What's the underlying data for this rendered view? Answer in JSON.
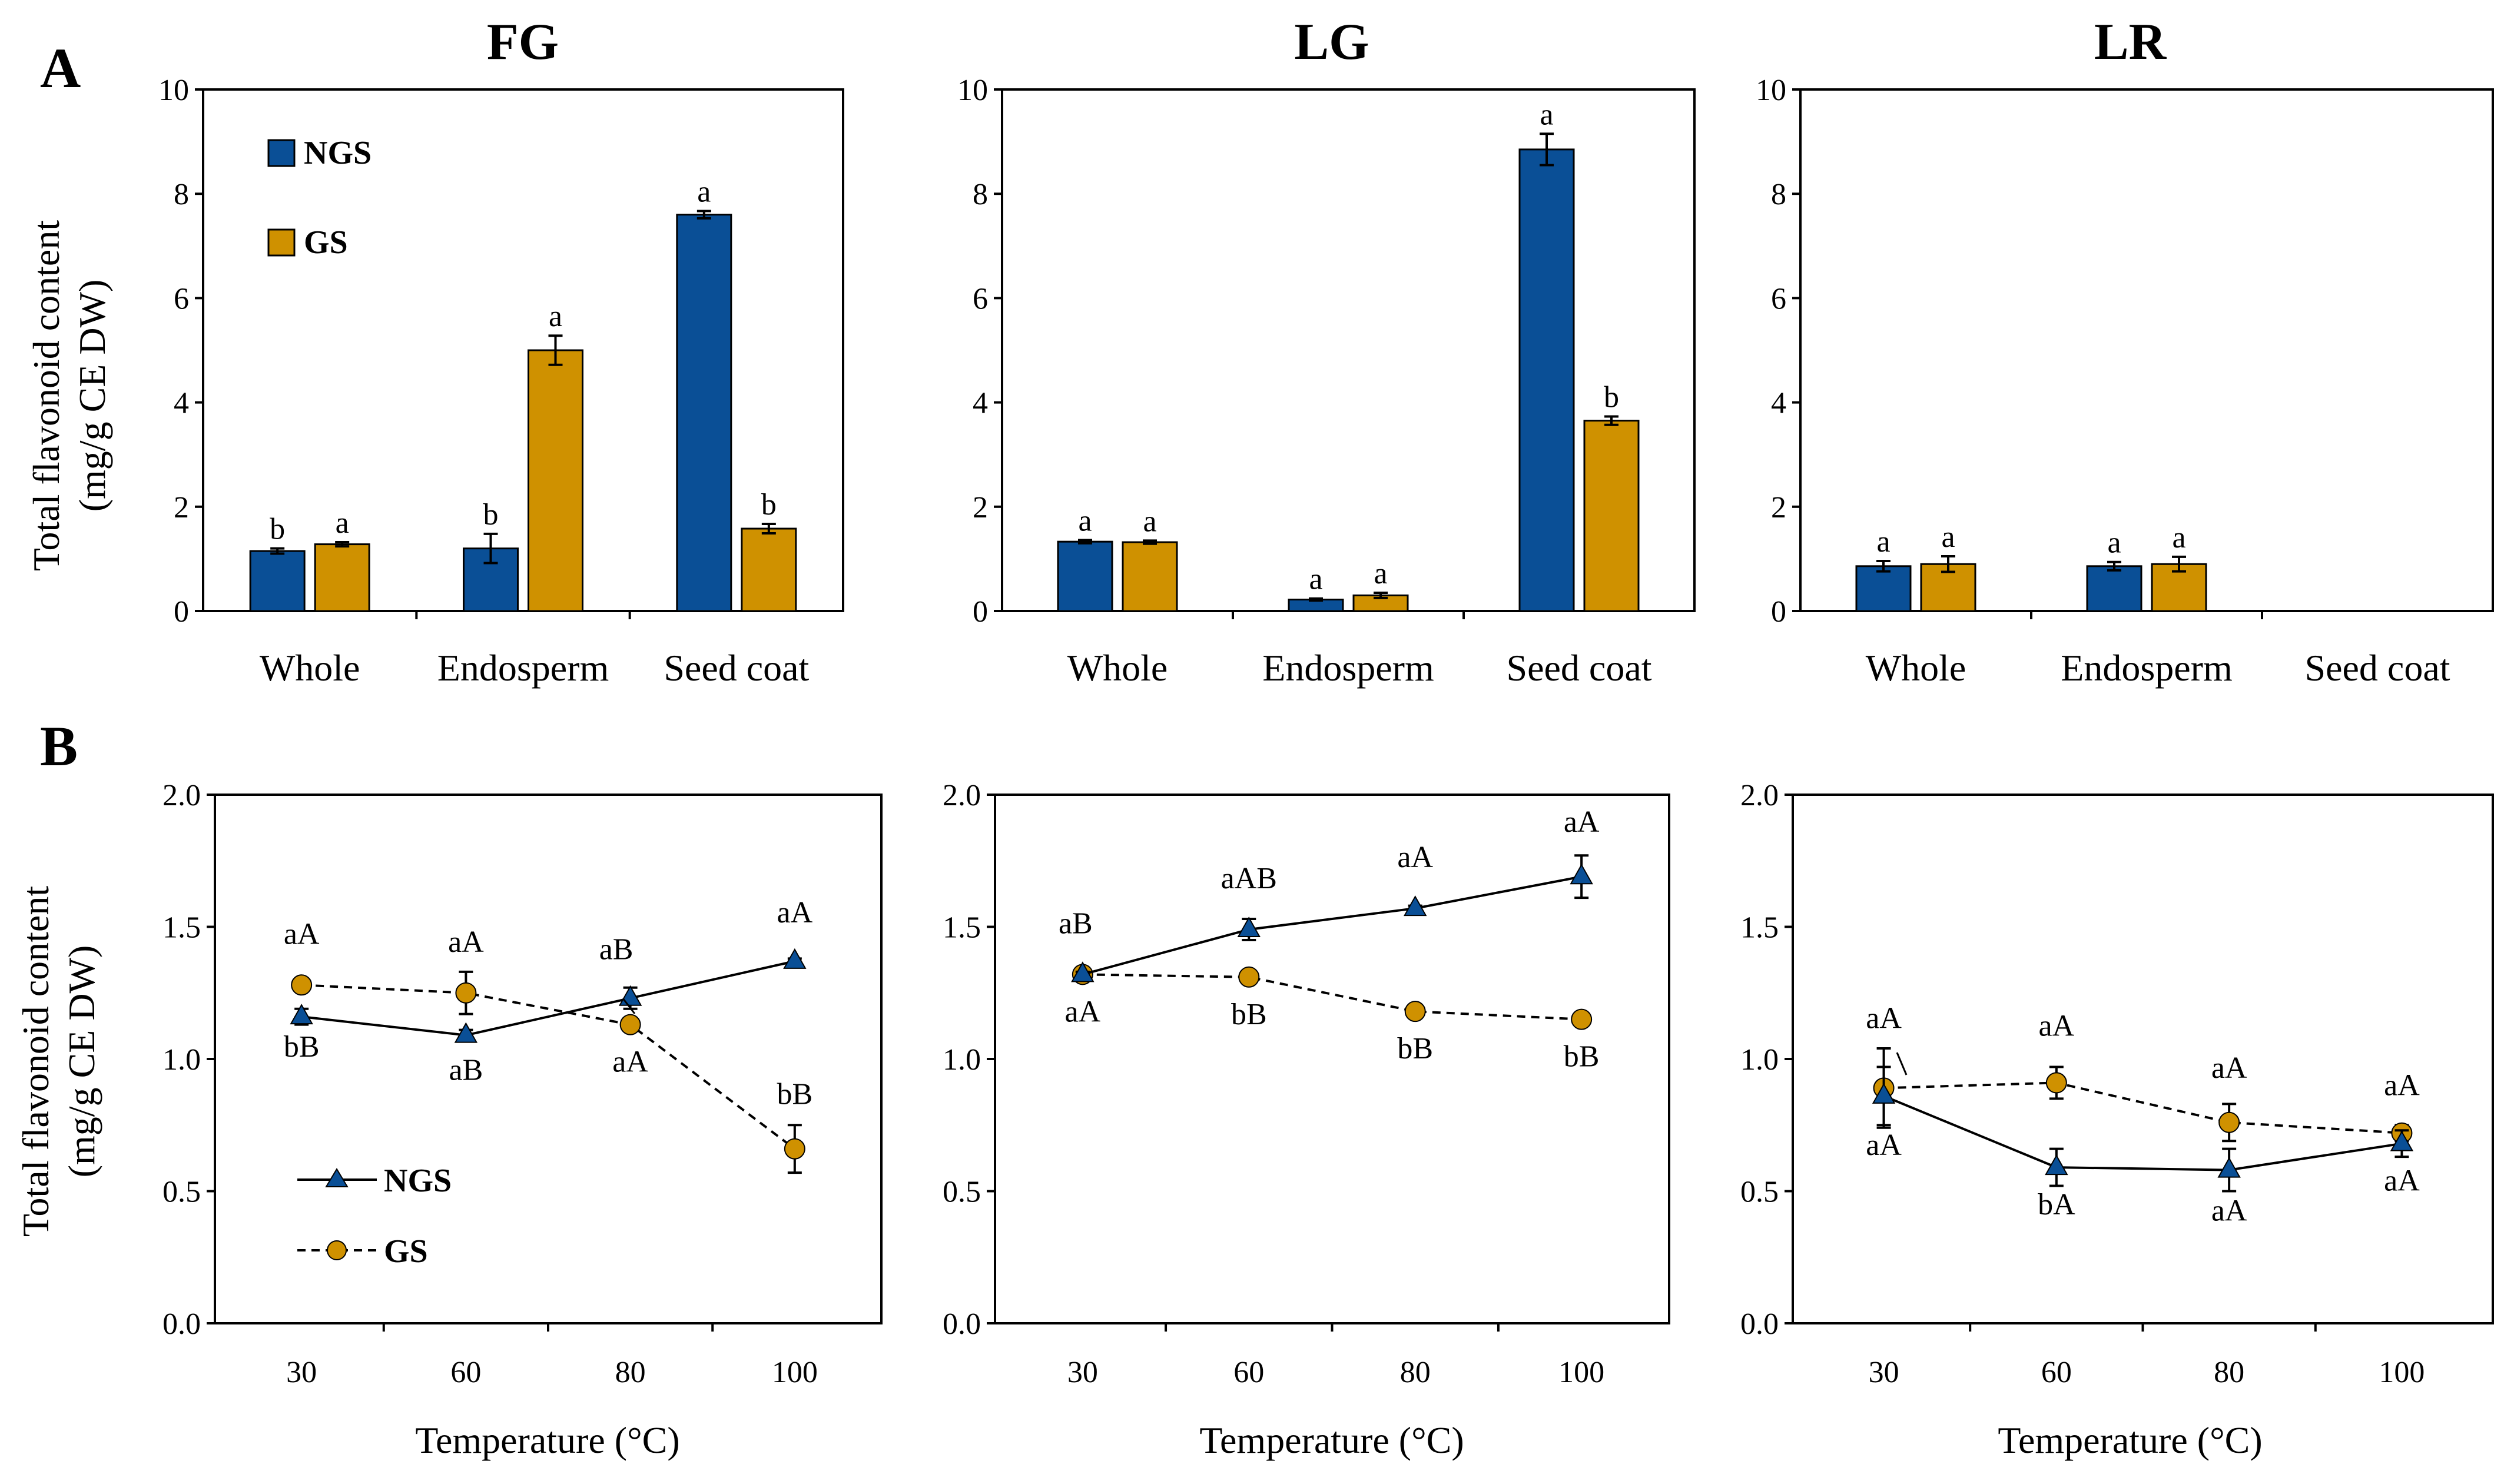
{
  "figure": {
    "panel_letters": [
      "A",
      "B"
    ],
    "titles": [
      "FG",
      "LG",
      "LR"
    ],
    "ylabel_line1": "Total flavonoid content",
    "ylabel_line2": "(mg/g CE DW)",
    "xlabel_b": "Temperature (°C)",
    "legend_a": [
      "NGS",
      "GS"
    ],
    "legend_b": [
      "NGS",
      "GS"
    ]
  },
  "colors": {
    "ngs": "#0A4F96",
    "gs": "#CF9100",
    "axis": "#000000"
  },
  "chart_data": [
    {
      "type": "bar",
      "panel": "A",
      "title": "FG",
      "categories": [
        "Whole",
        "Endosperm",
        "Seed coat"
      ],
      "ylim": [
        0,
        10
      ],
      "yticks": [
        "0",
        "2",
        "4",
        "6",
        "8",
        "10"
      ],
      "series": [
        {
          "name": "NGS",
          "values": [
            1.15,
            1.2,
            7.6
          ],
          "errors": [
            0.05,
            0.28,
            0.07
          ],
          "labels": [
            "b",
            "b",
            "a"
          ]
        },
        {
          "name": "GS",
          "values": [
            1.28,
            5.0,
            1.58
          ],
          "errors": [
            0.04,
            0.28,
            0.09
          ],
          "labels": [
            "a",
            "a",
            "b"
          ]
        }
      ]
    },
    {
      "type": "bar",
      "panel": "A",
      "title": "LG",
      "categories": [
        "Whole",
        "Endosperm",
        "Seed coat"
      ],
      "ylim": [
        0,
        10
      ],
      "yticks": [
        "0",
        "2",
        "4",
        "6",
        "8",
        "10"
      ],
      "series": [
        {
          "name": "NGS",
          "values": [
            1.33,
            0.22,
            8.85
          ],
          "errors": [
            0.03,
            0.02,
            0.3
          ],
          "labels": [
            "a",
            "a",
            "a"
          ]
        },
        {
          "name": "GS",
          "values": [
            1.32,
            0.3,
            3.65
          ],
          "errors": [
            0.03,
            0.05,
            0.08
          ],
          "labels": [
            "a",
            "a",
            "b"
          ]
        }
      ]
    },
    {
      "type": "bar",
      "panel": "A",
      "title": "LR",
      "categories": [
        "Whole",
        "Endosperm",
        "Seed coat"
      ],
      "ylim": [
        0,
        10
      ],
      "yticks": [
        "0",
        "2",
        "4",
        "6",
        "8",
        "10"
      ],
      "series": [
        {
          "name": "NGS",
          "values": [
            0.86,
            0.86,
            null
          ],
          "errors": [
            0.1,
            0.08,
            null
          ],
          "labels": [
            "a",
            "a",
            ""
          ]
        },
        {
          "name": "GS",
          "values": [
            0.9,
            0.9,
            null
          ],
          "errors": [
            0.15,
            0.14,
            null
          ],
          "labels": [
            "a",
            "a",
            ""
          ]
        }
      ]
    },
    {
      "type": "line",
      "panel": "B",
      "x": [
        "30",
        "60",
        "80",
        "100"
      ],
      "ylim": [
        0,
        2
      ],
      "yticks": [
        "0.0",
        "0.5",
        "1.0",
        "1.5",
        "2.0"
      ],
      "series": [
        {
          "name": "NGS",
          "values": [
            1.16,
            1.09,
            1.23,
            1.37
          ],
          "errors": [
            0.03,
            0.02,
            0.04,
            0.01
          ],
          "labels": [
            "bB",
            "aB",
            "aB",
            "aA"
          ]
        },
        {
          "name": "GS",
          "values": [
            1.28,
            1.25,
            1.13,
            0.66
          ],
          "errors": [
            0.01,
            0.08,
            0.02,
            0.09
          ],
          "labels": [
            "aA",
            "aA",
            "aA",
            "bB"
          ]
        }
      ]
    },
    {
      "type": "line",
      "panel": "B",
      "x": [
        "30",
        "60",
        "80",
        "100"
      ],
      "ylim": [
        0,
        2
      ],
      "yticks": [
        "0.0",
        "0.5",
        "1.0",
        "1.5",
        "2.0"
      ],
      "series": [
        {
          "name": "NGS",
          "values": [
            1.32,
            1.49,
            1.57,
            1.69
          ],
          "errors": [
            0.01,
            0.04,
            0.01,
            0.08
          ],
          "labels": [
            "aB",
            "aAB",
            "aA",
            "aA"
          ]
        },
        {
          "name": "GS",
          "values": [
            1.32,
            1.31,
            1.18,
            1.15
          ],
          "errors": [
            0.01,
            0.02,
            0.01,
            0.01
          ],
          "labels": [
            "aA",
            "bB",
            "bB",
            "bB"
          ]
        }
      ]
    },
    {
      "type": "line",
      "panel": "B",
      "x": [
        "30",
        "60",
        "80",
        "100"
      ],
      "ylim": [
        0,
        2
      ],
      "yticks": [
        "0.0",
        "0.5",
        "1.0",
        "1.5",
        "2.0"
      ],
      "series": [
        {
          "name": "NGS",
          "values": [
            0.86,
            0.59,
            0.58,
            0.68
          ],
          "errors": [
            0.11,
            0.07,
            0.08,
            0.05
          ],
          "labels": [
            "aA",
            "bA",
            "aA",
            "aA"
          ]
        },
        {
          "name": "GS",
          "values": [
            0.89,
            0.91,
            0.76,
            0.72
          ],
          "errors": [
            0.15,
            0.06,
            0.07,
            0.03
          ],
          "labels": [
            "aA",
            "aA",
            "aA",
            "aA"
          ]
        }
      ]
    }
  ]
}
